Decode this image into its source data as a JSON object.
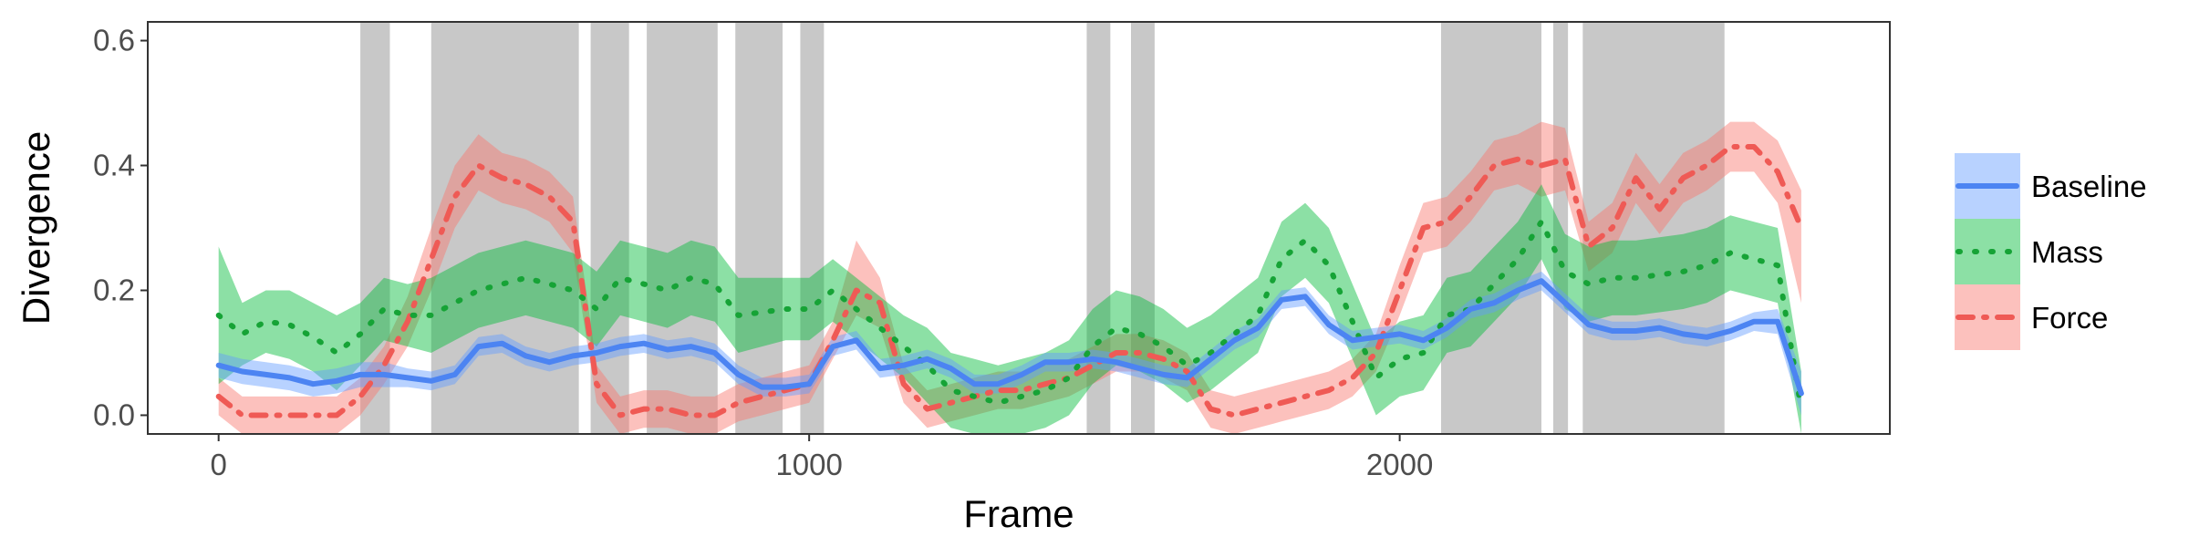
{
  "chart_data": {
    "type": "line",
    "title": "",
    "xlabel": "Frame",
    "ylabel": "Divergence",
    "xlim": [
      -120,
      2830
    ],
    "ylim": [
      -0.03,
      0.63
    ],
    "x_ticks": [
      0,
      1000,
      2000
    ],
    "x_tick_labels": [
      "0",
      "1000",
      "2000"
    ],
    "y_ticks": [
      0.0,
      0.2,
      0.4,
      0.6
    ],
    "y_tick_labels": [
      "0.0",
      "0.2",
      "0.4",
      "0.6"
    ],
    "grid": false,
    "legend_position": "right",
    "shaded_intervals": [
      [
        240,
        290
      ],
      [
        360,
        610
      ],
      [
        630,
        695
      ],
      [
        725,
        845
      ],
      [
        875,
        955
      ],
      [
        985,
        1025
      ],
      [
        1470,
        1510
      ],
      [
        1545,
        1585
      ],
      [
        2070,
        2240
      ],
      [
        2260,
        2285
      ],
      [
        2310,
        2550
      ]
    ],
    "x": [
      0,
      40,
      80,
      120,
      160,
      200,
      240,
      280,
      320,
      360,
      400,
      440,
      480,
      520,
      560,
      600,
      640,
      680,
      720,
      760,
      800,
      840,
      880,
      920,
      960,
      1000,
      1040,
      1080,
      1120,
      1160,
      1200,
      1240,
      1280,
      1320,
      1360,
      1400,
      1440,
      1480,
      1520,
      1560,
      1600,
      1640,
      1680,
      1720,
      1760,
      1800,
      1840,
      1880,
      1920,
      1960,
      2000,
      2040,
      2080,
      2120,
      2160,
      2200,
      2240,
      2280,
      2320,
      2360,
      2400,
      2440,
      2480,
      2520,
      2560,
      2600,
      2640,
      2680
    ],
    "series": [
      {
        "name": "Baseline",
        "color": "#619CFF",
        "line_color": "#4C84F2",
        "dash": "solid",
        "values": [
          0.08,
          0.07,
          0.065,
          0.06,
          0.05,
          0.055,
          0.065,
          0.065,
          0.06,
          0.055,
          0.065,
          0.11,
          0.115,
          0.095,
          0.085,
          0.095,
          0.1,
          0.11,
          0.115,
          0.105,
          0.11,
          0.1,
          0.065,
          0.045,
          0.045,
          0.05,
          0.11,
          0.12,
          0.075,
          0.08,
          0.09,
          0.075,
          0.05,
          0.05,
          0.065,
          0.085,
          0.085,
          0.09,
          0.085,
          0.075,
          0.065,
          0.06,
          0.09,
          0.12,
          0.14,
          0.185,
          0.19,
          0.145,
          0.12,
          0.125,
          0.13,
          0.12,
          0.14,
          0.17,
          0.18,
          0.2,
          0.215,
          0.18,
          0.145,
          0.135,
          0.135,
          0.14,
          0.13,
          0.125,
          0.135,
          0.15,
          0.15,
          0.035
        ],
        "lower": [
          0.06,
          0.05,
          0.045,
          0.04,
          0.03,
          0.035,
          0.045,
          0.045,
          0.045,
          0.04,
          0.05,
          0.095,
          0.1,
          0.08,
          0.07,
          0.08,
          0.085,
          0.095,
          0.1,
          0.09,
          0.095,
          0.085,
          0.05,
          0.03,
          0.03,
          0.035,
          0.095,
          0.105,
          0.06,
          0.065,
          0.075,
          0.06,
          0.035,
          0.035,
          0.05,
          0.07,
          0.07,
          0.075,
          0.07,
          0.06,
          0.05,
          0.045,
          0.075,
          0.105,
          0.125,
          0.17,
          0.175,
          0.13,
          0.105,
          0.11,
          0.115,
          0.105,
          0.125,
          0.155,
          0.165,
          0.185,
          0.2,
          0.165,
          0.13,
          0.12,
          0.12,
          0.125,
          0.115,
          0.11,
          0.12,
          0.135,
          0.13,
          0.0
        ],
        "upper": [
          0.1,
          0.09,
          0.085,
          0.08,
          0.07,
          0.075,
          0.085,
          0.085,
          0.075,
          0.07,
          0.08,
          0.125,
          0.13,
          0.11,
          0.1,
          0.11,
          0.115,
          0.125,
          0.13,
          0.12,
          0.125,
          0.115,
          0.08,
          0.06,
          0.06,
          0.065,
          0.125,
          0.135,
          0.09,
          0.095,
          0.105,
          0.09,
          0.065,
          0.065,
          0.08,
          0.1,
          0.1,
          0.105,
          0.1,
          0.09,
          0.08,
          0.075,
          0.105,
          0.135,
          0.155,
          0.2,
          0.205,
          0.16,
          0.135,
          0.14,
          0.145,
          0.135,
          0.155,
          0.185,
          0.195,
          0.215,
          0.23,
          0.195,
          0.16,
          0.15,
          0.15,
          0.155,
          0.145,
          0.14,
          0.15,
          0.165,
          0.17,
          0.07
        ]
      },
      {
        "name": "Mass",
        "color": "#00BA38",
        "line_color": "#16A336",
        "dash": "dotted",
        "values": [
          0.16,
          0.13,
          0.15,
          0.145,
          0.125,
          0.1,
          0.13,
          0.17,
          0.16,
          0.16,
          0.18,
          0.2,
          0.21,
          0.22,
          0.21,
          0.2,
          0.17,
          0.22,
          0.21,
          0.2,
          0.22,
          0.21,
          0.16,
          0.165,
          0.17,
          0.17,
          0.2,
          0.17,
          0.14,
          0.11,
          0.08,
          0.04,
          0.03,
          0.02,
          0.03,
          0.04,
          0.06,
          0.11,
          0.14,
          0.13,
          0.11,
          0.08,
          0.1,
          0.13,
          0.16,
          0.25,
          0.28,
          0.24,
          0.15,
          0.06,
          0.09,
          0.1,
          0.16,
          0.17,
          0.21,
          0.25,
          0.31,
          0.23,
          0.21,
          0.22,
          0.22,
          0.225,
          0.23,
          0.24,
          0.26,
          0.25,
          0.24,
          0.01
        ],
        "lower": [
          0.05,
          0.08,
          0.1,
          0.09,
          0.07,
          0.04,
          0.08,
          0.12,
          0.11,
          0.1,
          0.12,
          0.14,
          0.15,
          0.16,
          0.15,
          0.14,
          0.11,
          0.16,
          0.15,
          0.14,
          0.16,
          0.15,
          0.1,
          0.11,
          0.12,
          0.12,
          0.15,
          0.12,
          0.09,
          0.06,
          0.02,
          -0.02,
          -0.03,
          -0.04,
          -0.03,
          -0.02,
          0.0,
          0.05,
          0.08,
          0.07,
          0.05,
          0.02,
          0.04,
          0.07,
          0.1,
          0.19,
          0.22,
          0.18,
          0.09,
          0.0,
          0.03,
          0.04,
          0.1,
          0.11,
          0.15,
          0.19,
          0.25,
          0.17,
          0.15,
          0.16,
          0.16,
          0.165,
          0.17,
          0.18,
          0.2,
          0.19,
          0.18,
          -0.05
        ],
        "upper": [
          0.27,
          0.18,
          0.2,
          0.2,
          0.18,
          0.16,
          0.18,
          0.22,
          0.21,
          0.22,
          0.24,
          0.26,
          0.27,
          0.28,
          0.27,
          0.26,
          0.23,
          0.28,
          0.27,
          0.26,
          0.28,
          0.27,
          0.22,
          0.22,
          0.22,
          0.22,
          0.25,
          0.22,
          0.19,
          0.16,
          0.14,
          0.1,
          0.09,
          0.08,
          0.09,
          0.1,
          0.12,
          0.17,
          0.2,
          0.19,
          0.17,
          0.14,
          0.16,
          0.19,
          0.22,
          0.31,
          0.34,
          0.3,
          0.21,
          0.12,
          0.15,
          0.16,
          0.22,
          0.23,
          0.27,
          0.31,
          0.37,
          0.29,
          0.27,
          0.28,
          0.28,
          0.285,
          0.29,
          0.3,
          0.32,
          0.31,
          0.3,
          0.07
        ]
      },
      {
        "name": "Force",
        "color": "#F8766D",
        "line_color": "#EF5A55",
        "dash": "dashdot",
        "values": [
          0.03,
          0.0,
          0.0,
          0.0,
          0.0,
          0.0,
          0.03,
          0.08,
          0.15,
          0.25,
          0.35,
          0.4,
          0.38,
          0.37,
          0.35,
          0.31,
          0.05,
          0.0,
          0.01,
          0.01,
          0.0,
          0.0,
          0.02,
          0.03,
          0.04,
          0.05,
          0.12,
          0.2,
          0.18,
          0.05,
          0.01,
          0.02,
          0.03,
          0.04,
          0.04,
          0.05,
          0.06,
          0.08,
          0.1,
          0.1,
          0.09,
          0.07,
          0.01,
          0.0,
          0.01,
          0.02,
          0.03,
          0.04,
          0.06,
          0.1,
          0.2,
          0.3,
          0.31,
          0.35,
          0.4,
          0.41,
          0.4,
          0.41,
          0.27,
          0.3,
          0.38,
          0.33,
          0.38,
          0.4,
          0.43,
          0.43,
          0.39,
          0.3
        ],
        "lower": [
          0.0,
          -0.03,
          -0.03,
          -0.03,
          -0.03,
          -0.03,
          0.0,
          0.05,
          0.11,
          0.2,
          0.3,
          0.36,
          0.34,
          0.33,
          0.31,
          0.26,
          0.02,
          -0.03,
          -0.02,
          -0.02,
          -0.03,
          -0.03,
          -0.01,
          0.0,
          0.01,
          0.02,
          0.09,
          0.16,
          0.14,
          0.02,
          -0.02,
          -0.01,
          0.0,
          0.01,
          0.01,
          0.02,
          0.03,
          0.05,
          0.07,
          0.07,
          0.06,
          0.04,
          -0.02,
          -0.03,
          -0.02,
          -0.01,
          0.0,
          0.01,
          0.03,
          0.07,
          0.16,
          0.26,
          0.27,
          0.31,
          0.36,
          0.37,
          0.35,
          0.36,
          0.23,
          0.26,
          0.34,
          0.29,
          0.34,
          0.36,
          0.39,
          0.39,
          0.34,
          0.18
        ],
        "upper": [
          0.06,
          0.03,
          0.03,
          0.03,
          0.03,
          0.03,
          0.06,
          0.11,
          0.19,
          0.3,
          0.4,
          0.45,
          0.42,
          0.41,
          0.39,
          0.35,
          0.08,
          0.03,
          0.04,
          0.04,
          0.03,
          0.03,
          0.05,
          0.06,
          0.07,
          0.08,
          0.15,
          0.28,
          0.22,
          0.08,
          0.04,
          0.05,
          0.06,
          0.07,
          0.07,
          0.08,
          0.09,
          0.11,
          0.13,
          0.13,
          0.12,
          0.1,
          0.04,
          0.03,
          0.04,
          0.05,
          0.06,
          0.07,
          0.09,
          0.13,
          0.24,
          0.34,
          0.35,
          0.39,
          0.44,
          0.45,
          0.47,
          0.46,
          0.31,
          0.34,
          0.42,
          0.37,
          0.42,
          0.44,
          0.47,
          0.47,
          0.44,
          0.36
        ]
      }
    ]
  }
}
